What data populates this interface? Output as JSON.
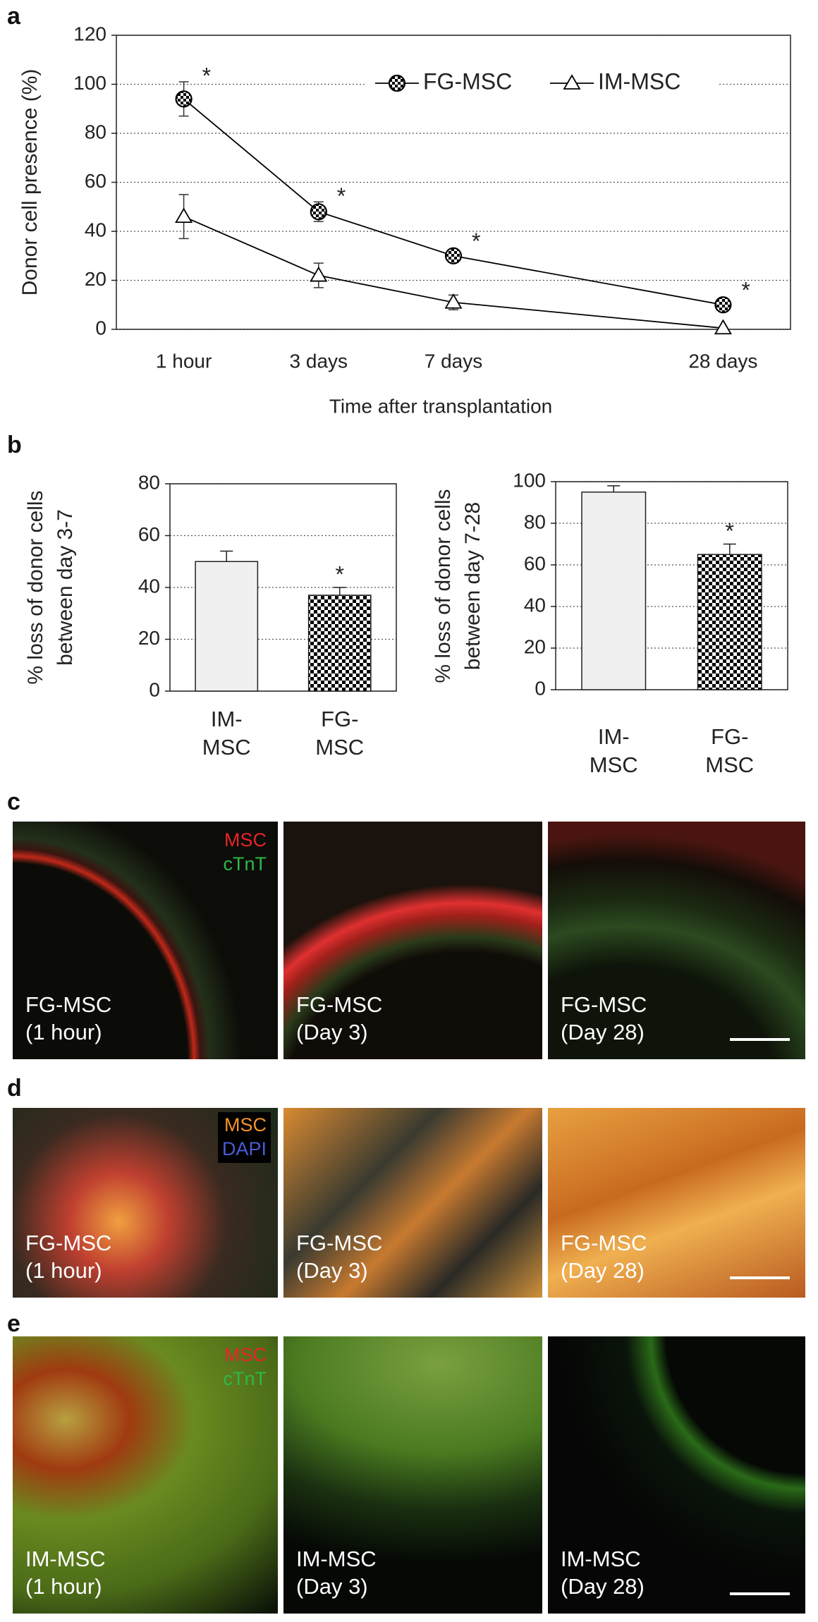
{
  "panel_labels": [
    "a",
    "b",
    "c",
    "d",
    "e"
  ],
  "chart_data": [
    {
      "type": "line",
      "xlabel": "Time after transplantation",
      "ylabel": "Donor cell presence (%)",
      "categories": [
        "1 hour",
        "3 days",
        "7 days",
        "28 days"
      ],
      "ylim": [
        0,
        120
      ],
      "yticks": [
        0,
        20,
        40,
        60,
        80,
        100,
        120
      ],
      "grid": true,
      "legend": "upper right",
      "series": [
        {
          "name": "FG-MSC",
          "color": "#000000",
          "marker": "checker-circle",
          "values": [
            94,
            48,
            30,
            10
          ],
          "errors": [
            7,
            4,
            2,
            1
          ],
          "annotations": [
            "*",
            "*",
            "*",
            "*"
          ]
        },
        {
          "name": "IM-MSC",
          "color": "#000000",
          "marker": "triangle",
          "values": [
            46,
            22,
            11,
            0.5
          ],
          "errors": [
            9,
            5,
            3,
            0
          ]
        }
      ]
    },
    {
      "type": "bar",
      "ylabel": "% loss of donor cells between day 3-7",
      "categories": [
        "IM-MSC",
        "FG-MSC"
      ],
      "values": [
        50,
        37
      ],
      "errors": [
        4,
        3
      ],
      "annotations": [
        null,
        "*"
      ],
      "colors": [
        "#f0f0f0",
        "#000000"
      ],
      "patterns": [
        null,
        "checker"
      ],
      "ylim": [
        0,
        80
      ],
      "yticks": [
        0,
        20,
        40,
        60,
        80
      ],
      "grid": true
    },
    {
      "type": "bar",
      "ylabel": "% loss of donor cells between day 7-28",
      "categories": [
        "IM-MSC",
        "FG-MSC"
      ],
      "values": [
        95,
        65
      ],
      "errors": [
        3,
        5
      ],
      "annotations": [
        null,
        "*"
      ],
      "colors": [
        "#f0f0f0",
        "#000000"
      ],
      "patterns": [
        null,
        "checker"
      ],
      "ylim": [
        0,
        100
      ],
      "yticks": [
        0,
        20,
        40,
        60,
        80,
        100
      ],
      "grid": true
    }
  ],
  "micrographs": [
    {
      "legend": [
        "MSC",
        "cTnT"
      ],
      "legend_colors": [
        "#e8232a",
        "#2db84a"
      ],
      "captions": [
        [
          "FG-MSC",
          "(1 hour)"
        ],
        [
          "FG-MSC",
          "(Day 3)"
        ],
        [
          "FG-MSC",
          "(Day 28)"
        ]
      ]
    },
    {
      "legend": [
        "MSC",
        "DAPI"
      ],
      "legend_colors": [
        "#f5922a",
        "#4a5bd6"
      ],
      "captions": [
        [
          "FG-MSC",
          "(1 hour)"
        ],
        [
          "FG-MSC",
          "(Day 3)"
        ],
        [
          "FG-MSC",
          "(Day 28)"
        ]
      ]
    },
    {
      "legend": [
        "MSC",
        "cTnT"
      ],
      "legend_colors": [
        "#e8232a",
        "#2db84a"
      ],
      "captions": [
        [
          "IM-MSC",
          "(1 hour)"
        ],
        [
          "IM-MSC",
          "(Day 3)"
        ],
        [
          "IM-MSC",
          "(Day 28)"
        ]
      ]
    }
  ]
}
